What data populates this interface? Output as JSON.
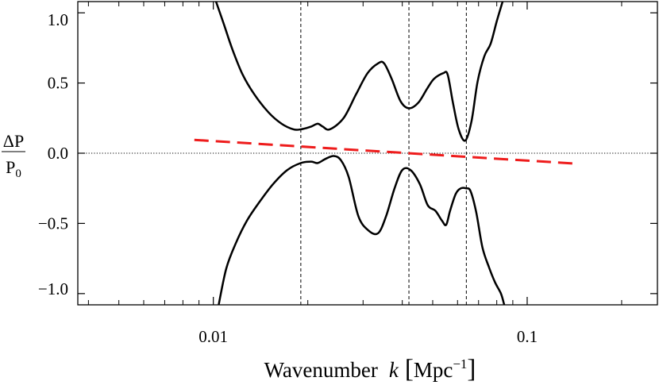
{
  "chart_data": {
    "type": "line",
    "xlabel": "Wavenumber  k [Mpc⁻¹]",
    "xlabel_parts": {
      "word": "Wavenumber",
      "var": "k",
      "unit_open": "[",
      "unit": "Mpc",
      "unit_exp": "−1",
      "unit_close": "]"
    },
    "ylabel": {
      "numerator": "ΔP",
      "denominator_base": "P",
      "denominator_sub": "0"
    },
    "xscale": "log",
    "xlim": [
      0.0037,
      0.26
    ],
    "ylim": [
      -1.08,
      1.08
    ],
    "xticks": [
      {
        "value": 0.01,
        "label": "0.01"
      },
      {
        "value": 0.1,
        "label": "0.1"
      }
    ],
    "xminor_ticks": [
      0.004,
      0.005,
      0.006,
      0.007,
      0.008,
      0.009,
      0.02,
      0.03,
      0.04,
      0.05,
      0.06,
      0.07,
      0.08,
      0.09,
      0.2
    ],
    "yticks": [
      {
        "value": 1.0,
        "label": "1.0"
      },
      {
        "value": 0.5,
        "label": "0.5"
      },
      {
        "value": 0.0,
        "label": "0.0"
      },
      {
        "value": -0.5,
        "label": "−0.5"
      },
      {
        "value": -1.0,
        "label": "−1.0"
      }
    ],
    "vlines": [
      0.019,
      0.042,
      0.064
    ],
    "hline": 0.0,
    "series": [
      {
        "style": "solid",
        "color": "#000000",
        "x": [
          0.0102,
          0.0108,
          0.0115,
          0.0124,
          0.0135,
          0.015,
          0.0165,
          0.018,
          0.019,
          0.0205,
          0.0215,
          0.0223,
          0.0235,
          0.026,
          0.0285,
          0.031,
          0.0335,
          0.035,
          0.037,
          0.0395,
          0.042,
          0.045,
          0.048,
          0.0505,
          0.054,
          0.0558,
          0.058,
          0.0605,
          0.0635,
          0.0665,
          0.0695,
          0.073,
          0.0765,
          0.08,
          0.0835
        ],
        "y": [
          1.08,
          0.92,
          0.74,
          0.56,
          0.42,
          0.29,
          0.21,
          0.17,
          0.17,
          0.19,
          0.21,
          0.19,
          0.17,
          0.25,
          0.42,
          0.57,
          0.64,
          0.64,
          0.53,
          0.37,
          0.32,
          0.36,
          0.46,
          0.53,
          0.57,
          0.56,
          0.36,
          0.17,
          0.09,
          0.23,
          0.51,
          0.69,
          0.78,
          0.94,
          1.08
        ]
      },
      {
        "style": "solid",
        "color": "#000000",
        "x": [
          0.0104,
          0.011,
          0.0118,
          0.0128,
          0.014,
          0.0155,
          0.0172,
          0.019,
          0.0205,
          0.0215,
          0.0228,
          0.0242,
          0.0255,
          0.027,
          0.029,
          0.0312,
          0.0335,
          0.0355,
          0.0378,
          0.04,
          0.0425,
          0.0455,
          0.0482,
          0.051,
          0.0535,
          0.0552,
          0.0568,
          0.0592,
          0.0615,
          0.0638,
          0.066,
          0.0688,
          0.072,
          0.0755,
          0.079,
          0.0825,
          0.0845
        ],
        "y": [
          -1.08,
          -0.82,
          -0.64,
          -0.48,
          -0.35,
          -0.22,
          -0.12,
          -0.07,
          -0.06,
          -0.07,
          -0.04,
          -0.02,
          -0.05,
          -0.17,
          -0.45,
          -0.55,
          -0.57,
          -0.45,
          -0.25,
          -0.12,
          -0.12,
          -0.22,
          -0.37,
          -0.41,
          -0.48,
          -0.51,
          -0.41,
          -0.29,
          -0.25,
          -0.25,
          -0.27,
          -0.42,
          -0.67,
          -0.81,
          -0.92,
          -1.0,
          -1.08
        ]
      },
      {
        "style": "dashed",
        "color": "#ee1c1c",
        "x": [
          0.0087,
          0.14
        ],
        "y": [
          0.095,
          -0.073
        ]
      }
    ]
  }
}
